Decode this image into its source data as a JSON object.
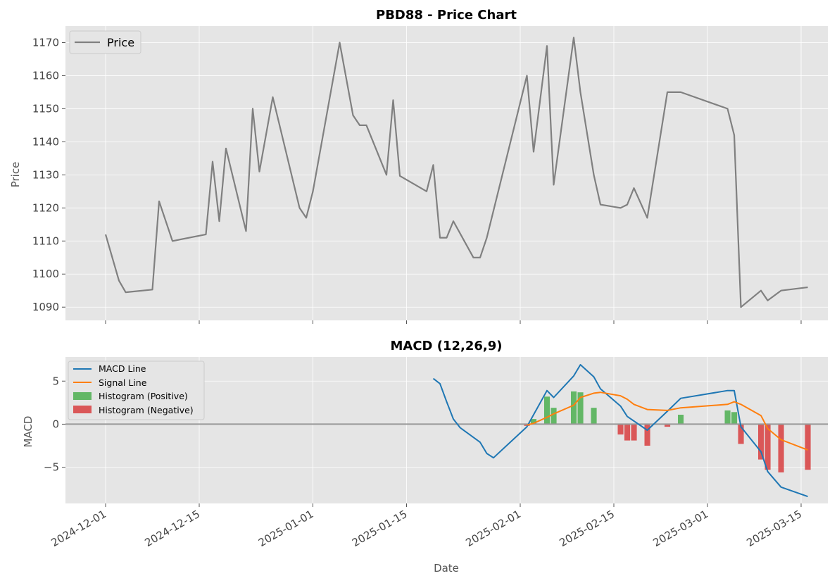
{
  "colors": {
    "background": "#e5e5e5",
    "price": "#808080",
    "macd": "#1f77b4",
    "signal": "#ff7f0e",
    "hist_pos": "#4caf50",
    "hist_neg": "#d62728",
    "zero_line": "#999999"
  },
  "x_tick_labels": [
    "2024-12-01",
    "2024-12-15",
    "2025-01-01",
    "2025-01-15",
    "2025-02-01",
    "2025-02-15",
    "2025-03-01",
    "2025-03-15"
  ],
  "xlabel": "Date",
  "chart_data": [
    {
      "type": "line",
      "title": "PBD88 - Price Chart",
      "xlabel": "",
      "ylabel": "Price",
      "ylim": [
        1086,
        1175
      ],
      "xlim": [
        "2024-11-25",
        "2025-03-19"
      ],
      "yticks": [
        1090,
        1100,
        1110,
        1120,
        1130,
        1140,
        1150,
        1160,
        1170
      ],
      "grid": true,
      "legend_position": "top-left",
      "series": [
        {
          "name": "Price",
          "color": "#808080",
          "x": [
            "2024-12-01",
            "2024-12-03",
            "2024-12-04",
            "2024-12-08",
            "2024-12-09",
            "2024-12-11",
            "2024-12-16",
            "2024-12-17",
            "2024-12-18",
            "2024-12-19",
            "2024-12-22",
            "2024-12-23",
            "2024-12-24",
            "2024-12-26",
            "2024-12-30",
            "2024-12-31",
            "2025-01-01",
            "2025-01-05",
            "2025-01-07",
            "2025-01-08",
            "2025-01-09",
            "2025-01-12",
            "2025-01-13",
            "2025-01-14",
            "2025-01-18",
            "2025-01-19",
            "2025-01-20",
            "2025-01-21",
            "2025-01-22",
            "2025-01-25",
            "2025-01-26",
            "2025-01-27",
            "2025-02-02",
            "2025-02-03",
            "2025-02-05",
            "2025-02-06",
            "2025-02-09",
            "2025-02-10",
            "2025-02-12",
            "2025-02-13",
            "2025-02-16",
            "2025-02-17",
            "2025-02-18",
            "2025-02-20",
            "2025-02-23",
            "2025-02-25",
            "2025-03-04",
            "2025-03-05",
            "2025-03-06",
            "2025-03-09",
            "2025-03-10",
            "2025-03-12",
            "2025-03-16"
          ],
          "values": [
            1112,
            1098,
            1094.5,
            1095.3,
            1122,
            1110,
            1112,
            1134,
            1116,
            1138,
            1113,
            1150,
            1131,
            1153.5,
            1120,
            1117,
            1125,
            1170,
            1148,
            1145,
            1145,
            1130,
            1152.6,
            1129.7,
            1125,
            1133,
            1111,
            1111,
            1116,
            1105,
            1105,
            1111,
            1160,
            1137,
            1169,
            1127,
            1171.5,
            1155,
            1130,
            1121,
            1120,
            1121,
            1126,
            1117,
            1155,
            1155,
            1150,
            1142,
            1090,
            1095,
            1092,
            1095,
            1096
          ]
        }
      ]
    },
    {
      "type": "line",
      "title": "MACD (12,26,9)",
      "xlabel": "Date",
      "ylabel": "MACD",
      "ylim": [
        -9.2,
        7.8
      ],
      "xlim": [
        "2024-11-25",
        "2025-03-19"
      ],
      "yticks": [
        -5,
        0,
        5
      ],
      "grid": true,
      "legend_position": "top-left",
      "series": [
        {
          "name": "MACD Line",
          "color": "#1f77b4",
          "x": [
            "2025-01-19",
            "2025-01-20",
            "2025-01-21",
            "2025-01-22",
            "2025-01-23",
            "2025-01-26",
            "2025-01-27",
            "2025-01-28",
            "2025-02-02",
            "2025-02-05",
            "2025-02-06",
            "2025-02-09",
            "2025-02-10",
            "2025-02-12",
            "2025-02-13",
            "2025-02-16",
            "2025-02-17",
            "2025-02-20",
            "2025-02-23",
            "2025-02-25",
            "2025-03-04",
            "2025-03-05",
            "2025-03-06",
            "2025-03-09",
            "2025-03-10",
            "2025-03-12",
            "2025-03-16"
          ],
          "values": [
            5.3,
            4.7,
            2.6,
            0.6,
            -0.4,
            -2.1,
            -3.4,
            -3.9,
            -0.3,
            3.9,
            3.1,
            5.6,
            6.9,
            5.5,
            4.1,
            2.1,
            0.9,
            -0.7,
            1.5,
            3.0,
            3.9,
            3.9,
            -0.3,
            -3.2,
            -5.5,
            -7.3,
            -8.4
          ]
        },
        {
          "name": "Signal Line",
          "color": "#ff7f0e",
          "x": [
            "2025-02-02",
            "2025-02-03",
            "2025-02-05",
            "2025-02-06",
            "2025-02-09",
            "2025-02-10",
            "2025-02-12",
            "2025-02-13",
            "2025-02-16",
            "2025-02-17",
            "2025-02-18",
            "2025-02-20",
            "2025-02-23",
            "2025-02-25",
            "2025-03-04",
            "2025-03-05",
            "2025-03-06",
            "2025-03-09",
            "2025-03-10",
            "2025-03-12",
            "2025-03-16"
          ],
          "values": [
            -0.1,
            0.1,
            0.8,
            1.2,
            2.2,
            3.1,
            3.6,
            3.7,
            3.3,
            2.9,
            2.3,
            1.7,
            1.6,
            1.9,
            2.3,
            2.6,
            2.3,
            1.0,
            -0.5,
            -1.8,
            -3.0
          ]
        },
        {
          "name": "Histogram (Positive)",
          "type": "bar",
          "color": "#4caf50",
          "x": [
            "2025-02-03",
            "2025-02-05",
            "2025-02-06",
            "2025-02-09",
            "2025-02-10",
            "2025-02-12",
            "2025-02-25",
            "2025-03-04",
            "2025-03-05"
          ],
          "values": [
            0.6,
            3.2,
            1.9,
            3.8,
            3.7,
            1.9,
            1.1,
            1.6,
            1.4
          ]
        },
        {
          "name": "Histogram (Negative)",
          "type": "bar",
          "color": "#d62728",
          "x": [
            "2025-02-02",
            "2025-02-16",
            "2025-02-17",
            "2025-02-18",
            "2025-02-20",
            "2025-02-23",
            "2025-03-06",
            "2025-03-09",
            "2025-03-10",
            "2025-03-12",
            "2025-03-16"
          ],
          "values": [
            -0.2,
            -1.2,
            -1.9,
            -1.9,
            -2.5,
            -0.3,
            -2.3,
            -4.1,
            -5.3,
            -5.6,
            -5.3
          ]
        }
      ]
    }
  ]
}
